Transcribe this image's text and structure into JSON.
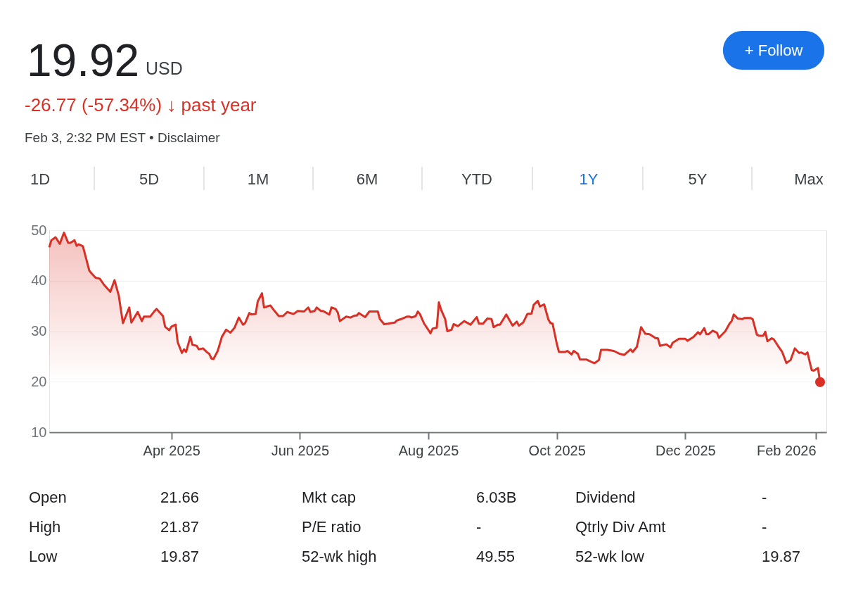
{
  "chart_data": {
    "type": "area",
    "title": "19.92",
    "annotations": [
      "USD",
      "-26.77 (-57.34%) ↓ past year",
      "Feb 3, 2:32 PM EST • Disclaimer",
      "1D",
      "5D",
      "1M",
      "6M",
      "YTD",
      "1Y",
      "5Y",
      "Max",
      "+ Follow",
      "Open",
      "21.66",
      "Mkt cap",
      "6.03B",
      "Dividend",
      "-",
      "High",
      "21.87",
      "P/E ratio",
      "-",
      "Qtrly Div Amt",
      "-",
      "Low",
      "19.87",
      "52-wk high",
      "49.55",
      "52-wk low",
      "19.87"
    ],
    "xlim": [
      "2025-02-02",
      "2026-02-06"
    ],
    "xticks": [
      {
        "value": "2025-04-01",
        "label": "Apr 2025"
      },
      {
        "value": "2025-06-01",
        "label": "Jun 2025"
      },
      {
        "value": "2025-08-01",
        "label": "Aug 2025"
      },
      {
        "value": "2025-10-01",
        "label": "Oct 2025"
      },
      {
        "value": "2025-12-01",
        "label": "Dec 2025"
      },
      {
        "value": "2026-02-01",
        "label": "Feb 2026"
      }
    ],
    "ylim": [
      10,
      50
    ],
    "yticks": [
      10,
      20,
      30,
      40,
      50
    ],
    "grid": "y",
    "series": [
      {
        "color": "#d93025",
        "x": [
          "2025-02-02",
          "2025-02-03",
          "2025-02-05",
          "2025-02-07",
          "2025-02-09",
          "2025-02-11",
          "2025-02-12",
          "2025-02-14",
          "2025-02-15",
          "2025-02-16",
          "2025-02-18",
          "2025-02-21",
          "2025-02-22",
          "2025-02-24",
          "2025-02-26",
          "2025-02-28",
          "2025-03-03",
          "2025-03-05",
          "2025-03-07",
          "2025-03-08",
          "2025-03-09",
          "2025-03-12",
          "2025-03-13",
          "2025-03-15",
          "2025-03-16",
          "2025-03-18",
          "2025-03-19",
          "2025-03-22",
          "2025-03-24",
          "2025-03-25",
          "2025-03-28",
          "2025-03-29",
          "2025-03-31",
          "2025-04-01",
          "2025-04-03",
          "2025-04-04",
          "2025-04-06",
          "2025-04-07",
          "2025-04-08",
          "2025-04-10",
          "2025-04-11",
          "2025-04-13",
          "2025-04-14",
          "2025-04-16",
          "2025-04-18",
          "2025-04-19",
          "2025-04-20",
          "2025-04-21",
          "2025-04-23",
          "2025-04-25",
          "2025-04-27",
          "2025-04-29",
          "2025-05-01",
          "2025-05-03",
          "2025-05-05",
          "2025-05-06",
          "2025-05-08",
          "2025-05-09",
          "2025-05-11",
          "2025-05-12",
          "2025-05-14",
          "2025-05-15",
          "2025-05-18",
          "2025-05-20",
          "2025-05-22",
          "2025-05-24",
          "2025-05-26",
          "2025-05-29",
          "2025-05-31",
          "2025-06-03",
          "2025-06-05",
          "2025-06-06",
          "2025-06-08",
          "2025-06-09",
          "2025-06-11",
          "2025-06-12",
          "2025-06-15",
          "2025-06-16",
          "2025-06-18",
          "2025-06-19",
          "2025-06-20",
          "2025-06-23",
          "2025-06-25",
          "2025-06-27",
          "2025-06-28",
          "2025-06-29",
          "2025-07-02",
          "2025-07-04",
          "2025-07-08",
          "2025-07-09",
          "2025-07-11",
          "2025-07-13",
          "2025-07-16",
          "2025-07-17",
          "2025-07-19",
          "2025-07-22",
          "2025-07-23",
          "2025-07-24",
          "2025-07-26",
          "2025-07-27",
          "2025-07-28",
          "2025-07-30",
          "2025-07-31",
          "2025-08-02",
          "2025-08-03",
          "2025-08-05",
          "2025-08-06",
          "2025-08-07",
          "2025-08-09",
          "2025-08-10",
          "2025-08-12",
          "2025-08-13",
          "2025-08-15",
          "2025-08-18",
          "2025-08-21",
          "2025-08-24",
          "2025-08-25",
          "2025-08-27",
          "2025-08-29",
          "2025-08-31",
          "2025-09-01",
          "2025-09-03",
          "2025-09-04",
          "2025-09-07",
          "2025-09-10",
          "2025-09-12",
          "2025-09-13",
          "2025-09-15",
          "2025-09-17",
          "2025-09-19",
          "2025-09-20",
          "2025-09-22",
          "2025-09-23",
          "2025-09-25",
          "2025-09-27",
          "2025-09-28",
          "2025-09-29",
          "2025-10-01",
          "2025-10-02",
          "2025-10-05",
          "2025-10-06",
          "2025-10-08",
          "2025-10-09",
          "2025-10-11",
          "2025-10-12",
          "2025-10-15",
          "2025-10-18",
          "2025-10-19",
          "2025-10-21",
          "2025-10-22",
          "2025-10-25",
          "2025-10-28",
          "2025-10-31",
          "2025-11-02",
          "2025-11-05",
          "2025-11-06",
          "2025-11-08",
          "2025-11-10",
          "2025-11-12",
          "2025-11-14",
          "2025-11-17",
          "2025-11-18",
          "2025-11-19",
          "2025-11-22",
          "2025-11-24",
          "2025-11-25",
          "2025-11-28",
          "2025-12-01",
          "2025-12-02",
          "2025-12-05",
          "2025-12-07",
          "2025-12-08",
          "2025-12-10",
          "2025-12-11",
          "2025-12-12",
          "2025-12-14",
          "2025-12-16",
          "2025-12-17",
          "2025-12-20",
          "2025-12-22",
          "2025-12-23",
          "2025-12-24",
          "2025-12-26",
          "2025-12-28",
          "2025-12-29",
          "2026-01-01",
          "2026-01-02",
          "2026-01-04",
          "2026-01-05",
          "2026-01-07",
          "2026-01-08",
          "2026-01-09",
          "2026-01-11",
          "2026-01-12",
          "2026-01-14",
          "2026-01-16",
          "2026-01-18",
          "2026-01-20",
          "2026-01-22",
          "2026-01-24",
          "2026-01-25",
          "2026-01-27",
          "2026-01-28",
          "2026-01-30",
          "2026-01-31",
          "2026-02-02",
          "2026-02-03"
        ],
        "values": [
          46.6,
          48.0,
          48.6,
          47.3,
          49.5,
          47.5,
          47.5,
          48.0,
          46.9,
          47.2,
          46.8,
          42.0,
          41.5,
          40.6,
          40.4,
          39.2,
          37.8,
          40.1,
          37.1,
          34.3,
          31.6,
          34.7,
          31.7,
          33.1,
          33.8,
          32.0,
          32.9,
          32.9,
          34.0,
          34.4,
          33.0,
          30.9,
          30.2,
          30.9,
          31.3,
          27.8,
          25.7,
          26.4,
          25.9,
          28.9,
          27.3,
          27.1,
          26.4,
          26.6,
          25.8,
          25.5,
          24.6,
          24.5,
          26.1,
          28.9,
          30.3,
          29.7,
          30.7,
          32.7,
          31.3,
          31.6,
          33.6,
          33.3,
          33.4,
          35.9,
          37.5,
          34.7,
          35.1,
          34.0,
          33.0,
          33.0,
          33.8,
          33.4,
          34.0,
          33.9,
          34.7,
          33.8,
          34.0,
          34.7,
          34.0,
          34.0,
          33.3,
          34.7,
          34.4,
          33.7,
          32.0,
          32.9,
          32.7,
          33.1,
          33.1,
          33.6,
          32.8,
          33.9,
          33.9,
          32.4,
          31.4,
          31.5,
          31.7,
          32.1,
          32.4,
          32.9,
          32.9,
          32.7,
          33.0,
          33.9,
          33.4,
          31.5,
          30.9,
          29.6,
          30.5,
          30.7,
          35.7,
          34.3,
          32.4,
          30.0,
          30.3,
          31.4,
          31.0,
          32.0,
          31.3,
          32.8,
          31.5,
          31.5,
          32.5,
          32.4,
          30.8,
          31.3,
          31.3,
          33.3,
          31.1,
          31.9,
          31.1,
          31.7,
          33.4,
          33.5,
          35.2,
          36.0,
          34.9,
          35.3,
          32.3,
          31.6,
          31.5,
          27.5,
          25.9,
          25.9,
          26.1,
          25.4,
          26.1,
          25.5,
          24.4,
          24.4,
          23.8,
          23.7,
          24.3,
          26.3,
          26.3,
          26.1,
          25.5,
          25.3,
          26.4,
          25.9,
          26.9,
          30.8,
          29.5,
          29.4,
          28.6,
          28.6,
          27.1,
          27.4,
          26.8,
          27.7,
          28.5,
          28.5,
          28.1,
          28.9,
          29.8,
          29.4,
          30.6,
          29.4,
          29.4,
          30.1,
          29.7,
          28.7,
          30.0,
          31.5,
          32.0,
          33.3,
          32.5,
          32.4,
          32.6,
          32.6,
          32.4,
          29.3,
          29.1,
          29.1,
          29.9,
          28.0,
          28.6,
          28.4,
          27.1,
          25.9,
          23.7,
          24.3,
          26.6,
          25.7,
          25.8,
          25.4,
          25.8,
          22.3,
          22.2,
          22.7,
          19.92
        ]
      },
      {
        "type": "scatter",
        "marker": "circle",
        "color": "#d93025",
        "x": [
          "2026-02-03"
        ],
        "values": [
          19.92
        ]
      }
    ]
  }
}
